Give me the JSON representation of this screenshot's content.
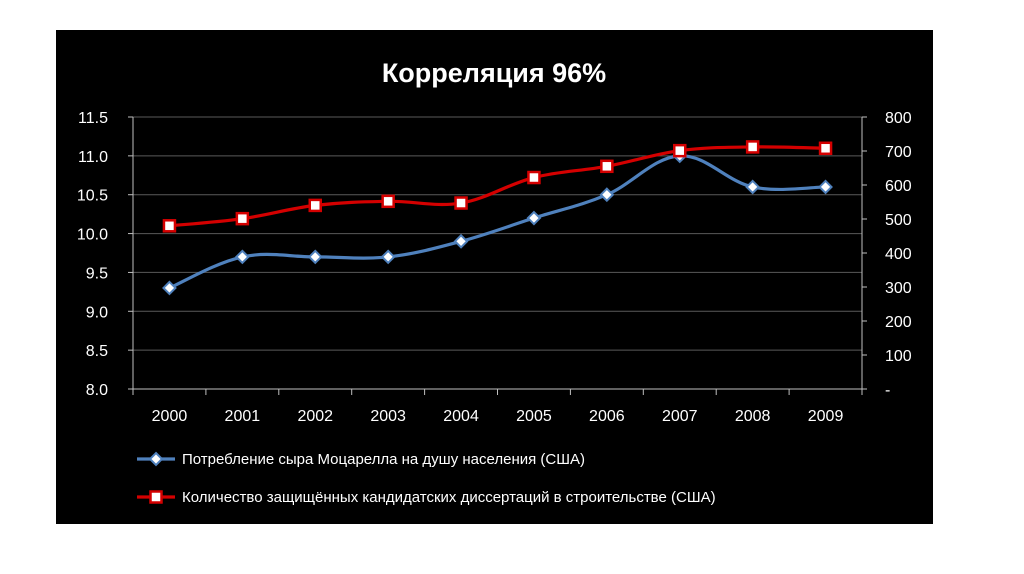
{
  "chart_data": {
    "type": "line",
    "title": "Корреляция 96%",
    "categories": [
      "2000",
      "2001",
      "2002",
      "2003",
      "2004",
      "2005",
      "2006",
      "2007",
      "2008",
      "2009"
    ],
    "y_left": {
      "min": 8.0,
      "max": 11.5,
      "ticks": [
        "8.0",
        "8.5",
        "9.0",
        "9.5",
        "10.0",
        "10.5",
        "11.0",
        "11.5"
      ]
    },
    "y_right": {
      "min": 0,
      "max": 800,
      "ticks": [
        "-",
        "100",
        "200",
        "300",
        "400",
        "500",
        "600",
        "700",
        "800"
      ]
    },
    "grid": true,
    "legend_position": "bottom",
    "series": [
      {
        "name": "Потребление сыра Моцарелла на душу населения (США)",
        "axis": "left",
        "marker": "diamond",
        "color": "#4f81bd",
        "values": [
          9.3,
          9.7,
          9.7,
          9.7,
          9.9,
          10.2,
          10.5,
          11.0,
          10.6,
          10.6
        ]
      },
      {
        "name": "Количество защищённых кандидатских диссертаций в строительстве (США)",
        "axis": "right",
        "marker": "square",
        "color": "#d40000",
        "values": [
          480,
          501,
          540,
          552,
          547,
          622,
          655,
          701,
          712,
          708
        ]
      }
    ]
  },
  "colors": {
    "page_background": "#ffffff",
    "chart_background": "#000000",
    "text": "#ffffff",
    "grid": "#5a5a5a"
  }
}
